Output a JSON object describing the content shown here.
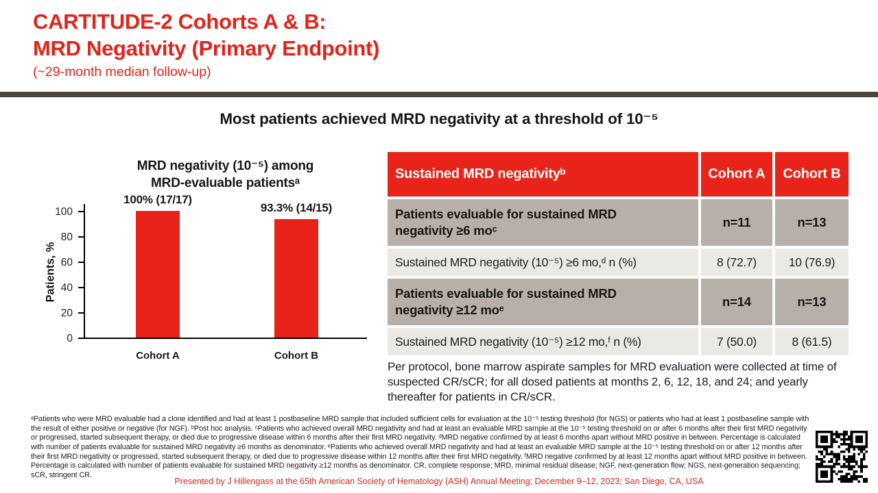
{
  "header": {
    "title_line1": "CARTITUDE-2 Cohorts A & B:",
    "title_line2": "MRD Negativity (Primary Endpoint)",
    "subtitle": "(~29-month median follow-up)"
  },
  "headline": "Most patients achieved MRD negativity at a threshold of 10⁻⁵",
  "chart_data": {
    "type": "bar",
    "title_line1": "MRD negativity (10⁻⁵) among",
    "title_line2": "MRD-evaluable patientsᵃ",
    "categories": [
      "Cohort A",
      "Cohort B"
    ],
    "values": [
      100,
      93.3
    ],
    "bar_labels": [
      "100% (17/17)",
      "93.3% (14/15)"
    ],
    "ylabel": "Patients, %",
    "ylim": [
      0,
      100
    ],
    "yticks": [
      0,
      20,
      40,
      60,
      80,
      100
    ],
    "grid": "off",
    "bar_color": "#E8231A"
  },
  "table": {
    "columns": [
      "Sustained MRD negativityᵇ",
      "Cohort A",
      "Cohort B"
    ],
    "rows": [
      {
        "style": "subheader",
        "label": "Patients evaluable for sustained MRD negativity ≥6 moᶜ",
        "cohort_a": "n=11",
        "cohort_b": "n=13"
      },
      {
        "style": "data",
        "label": "Sustained MRD negativity (10⁻⁵) ≥6 mo,ᵈ n (%)",
        "cohort_a": "8 (72.7)",
        "cohort_b": "10 (76.9)"
      },
      {
        "style": "subheader",
        "label": "Patients evaluable for sustained MRD negativity ≥12 moᵉ",
        "cohort_a": "n=14",
        "cohort_b": "n=13"
      },
      {
        "style": "data",
        "label": "Sustained MRD negativity (10⁻⁵) ≥12 mo,ᶠ n (%)",
        "cohort_a": "7 (50.0)",
        "cohort_b": "8 (61.5)"
      }
    ],
    "note": "Per protocol, bone marrow aspirate samples for MRD evaluation were collected at time of suspected CR/sCR; for all dosed patients at months 2, 6, 12, 18, and 24; and yearly thereafter for patients in CR/sCR."
  },
  "footnotes": "ᵃPatients who were MRD evaluable had a clone identified and had at least 1 postbaseline MRD sample that included sufficient cells for evaluation at the 10⁻⁵ testing threshold (for NGS) or patients who had at least 1 postbaseline sample with the result of either positive or negative (for NGF). ᵇPost hoc analysis. ᶜPatients who achieved overall MRD negativity and had at least an evaluable MRD sample at the 10⁻⁵ testing threshold on or after 6 months after their first MRD negativity or progressed, started subsequent therapy, or died due to progressive disease within 6 months after their first MRD negativity. ᵈMRD negative confirmed by at least 6 months apart without MRD positive in between. Percentage is calculated with number of patients evaluable for sustained MRD negativity ≥6 months as denominator. ᵉPatients who achieved overall MRD negativity and had at least an evaluable MRD sample at the 10⁻⁵ testing threshold on or after 12 months after their first MRD negativity or progressed, started subsequent therapy, or died due to progressive disease within 12 months after their first MRD negativity. ᶠMRD negative confirmed by at least 12 months apart without MRD positive in between. Percentage is calculated with number of patients evaluable for sustained MRD negativity ≥12 months as denominator. CR, complete response; MRD, minimal residual disease; NGF, next-generation flow; NGS, next-generation sequencing; sCR, stringent CR.",
  "footer": {
    "presenter": "Presented by J Hillengass at the 65th American Society of Hematology (ASH) Annual Meeting; December 9–12, 2023; San Diego, CA, USA"
  },
  "icons": {
    "qr_code": "qr-code"
  },
  "colors": {
    "accent_red": "#E2231A",
    "table_header_red": "#E8231A",
    "divider_dark": "#4D4541",
    "row_subheader": "#B6B0A9",
    "row_data": "#EBE9E6"
  }
}
